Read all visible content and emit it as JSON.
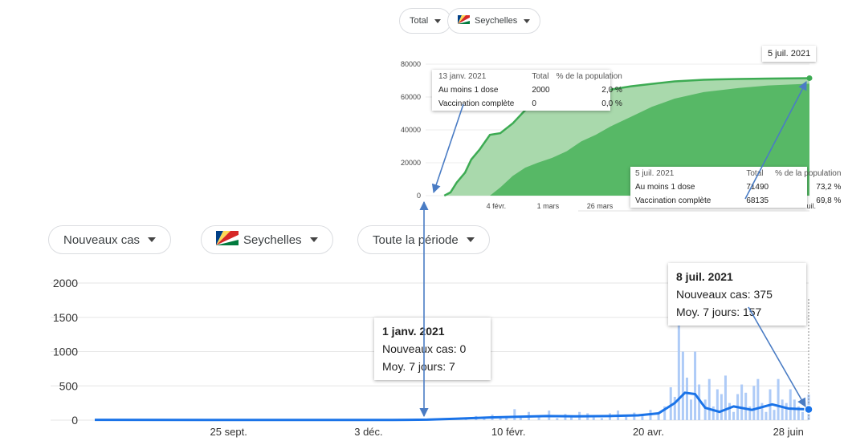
{
  "top_panel": {
    "chips": {
      "metric": "Total",
      "country": "Seychelles"
    },
    "corner_date": "5 juil. 2021",
    "tooltip_left": {
      "date": "13 janv. 2021",
      "col_total": "Total",
      "col_pct": "% de la population",
      "rows": [
        {
          "label": "Au moins 1 dose",
          "total": "2000",
          "pct": "2,0 %"
        },
        {
          "label": "Vaccination complète",
          "total": "0",
          "pct": "0,0 %"
        }
      ]
    },
    "tooltip_right": {
      "date": "5 juil. 2021",
      "col_total": "Total",
      "col_pct": "% de la population",
      "rows": [
        {
          "label": "Au moins 1 dose",
          "total": "71490",
          "pct": "73,2 %"
        },
        {
          "label": "Vaccination complète",
          "total": "68135",
          "pct": "69,8 %"
        }
      ]
    },
    "edge_tick": "uil."
  },
  "bottom_panel": {
    "chips": {
      "metric": "Nouveaux cas",
      "country": "Seychelles",
      "period": "Toute la période"
    },
    "tooltip_left": {
      "date": "1 janv. 2021",
      "cases": "Nouveaux cas: 0",
      "avg": "Moy. 7 jours: 7"
    },
    "tooltip_right": {
      "date": "8 juil. 2021",
      "cases": "Nouveaux cas: 375",
      "avg": "Moy. 7 jours: 157"
    }
  },
  "colors": {
    "dark_green": "#3dab53",
    "light_green": "#a9d9ac",
    "mid_green": "#57b866",
    "bar_blue": "#aecbf7",
    "line_blue": "#1a73e8",
    "arrow": "#4a7cc4"
  },
  "chart_data": [
    {
      "type": "area",
      "title": "",
      "ylim": [
        0,
        80000
      ],
      "y_ticks": [
        0,
        20000,
        40000,
        60000,
        80000
      ],
      "x_ticks": [
        "4 févr.",
        "1 mars",
        "26 mars"
      ],
      "x": [
        "2021-01-10",
        "2021-01-13",
        "2021-01-16",
        "2021-01-20",
        "2021-01-23",
        "2021-01-27",
        "2021-02-01",
        "2021-02-06",
        "2021-02-12",
        "2021-02-18",
        "2021-02-24",
        "2021-03-03",
        "2021-03-10",
        "2021-03-17",
        "2021-03-24",
        "2021-03-31",
        "2021-04-10",
        "2021-04-20",
        "2021-05-01",
        "2021-05-15",
        "2021-06-01",
        "2021-06-15",
        "2021-07-05"
      ],
      "series": [
        {
          "name": "Au moins 1 dose",
          "values": [
            0,
            2000,
            8000,
            14000,
            22000,
            28000,
            37000,
            38000,
            44000,
            52000,
            57000,
            60000,
            61000,
            61500,
            63000,
            64500,
            66500,
            68000,
            69500,
            70500,
            71000,
            71200,
            71490
          ]
        },
        {
          "name": "Vaccination complète",
          "values": [
            0,
            0,
            0,
            0,
            0,
            0,
            0,
            5000,
            12000,
            17000,
            20000,
            23000,
            27000,
            33000,
            37000,
            42000,
            48000,
            54000,
            59000,
            63000,
            65500,
            67000,
            68135
          ]
        }
      ]
    },
    {
      "type": "bar",
      "title": "",
      "ylim": [
        0,
        2000
      ],
      "y_ticks": [
        0,
        500,
        1000,
        1500,
        2000
      ],
      "x_ticks": [
        "25 sept.",
        "3 déc.",
        "10 févr.",
        "20 avr.",
        "28 juin"
      ],
      "x_range": [
        "2020-07-21",
        "2021-07-08"
      ],
      "series": [
        {
          "name": "Nouveaux cas",
          "x": [
            "2021-01-20",
            "2021-01-25",
            "2021-01-29",
            "2021-02-02",
            "2021-02-06",
            "2021-02-09",
            "2021-02-13",
            "2021-02-16",
            "2021-02-20",
            "2021-02-25",
            "2021-03-02",
            "2021-03-06",
            "2021-03-10",
            "2021-03-13",
            "2021-03-17",
            "2021-03-21",
            "2021-03-24",
            "2021-03-28",
            "2021-04-01",
            "2021-04-05",
            "2021-04-09",
            "2021-04-13",
            "2021-04-17",
            "2021-04-21",
            "2021-04-25",
            "2021-04-28",
            "2021-05-01",
            "2021-05-03",
            "2021-05-05",
            "2021-05-07",
            "2021-05-09",
            "2021-05-11",
            "2021-05-13",
            "2021-05-15",
            "2021-05-18",
            "2021-05-20",
            "2021-05-22",
            "2021-05-24",
            "2021-05-26",
            "2021-05-28",
            "2021-05-30",
            "2021-06-01",
            "2021-06-03",
            "2021-06-05",
            "2021-06-07",
            "2021-06-09",
            "2021-06-11",
            "2021-06-13",
            "2021-06-15",
            "2021-06-17",
            "2021-06-19",
            "2021-06-21",
            "2021-06-23",
            "2021-06-25",
            "2021-06-27",
            "2021-06-29",
            "2021-07-01",
            "2021-07-03",
            "2021-07-05",
            "2021-07-08"
          ],
          "values": [
            30,
            60,
            25,
            80,
            40,
            60,
            160,
            40,
            120,
            60,
            140,
            30,
            90,
            60,
            120,
            100,
            40,
            30,
            100,
            140,
            50,
            110,
            80,
            150,
            90,
            200,
            480,
            340,
            1650,
            1000,
            620,
            300,
            1000,
            520,
            300,
            600,
            200,
            450,
            380,
            650,
            250,
            120,
            380,
            520,
            400,
            200,
            500,
            600,
            250,
            120,
            450,
            150,
            600,
            300,
            250,
            450,
            300,
            200,
            120,
            375
          ]
        },
        {
          "name": "Moy. 7 jours",
          "x": [
            "2020-07-21",
            "2020-10-01",
            "2020-12-15",
            "2021-01-01",
            "2021-01-15",
            "2021-02-01",
            "2021-02-15",
            "2021-03-01",
            "2021-03-15",
            "2021-04-01",
            "2021-04-15",
            "2021-04-25",
            "2021-05-03",
            "2021-05-08",
            "2021-05-13",
            "2021-05-18",
            "2021-05-25",
            "2021-06-01",
            "2021-06-10",
            "2021-06-20",
            "2021-06-28",
            "2021-07-08"
          ],
          "values": [
            5,
            3,
            3,
            7,
            20,
            40,
            50,
            60,
            55,
            60,
            70,
            100,
            250,
            400,
            380,
            180,
            120,
            200,
            150,
            230,
            170,
            157
          ]
        }
      ]
    }
  ]
}
